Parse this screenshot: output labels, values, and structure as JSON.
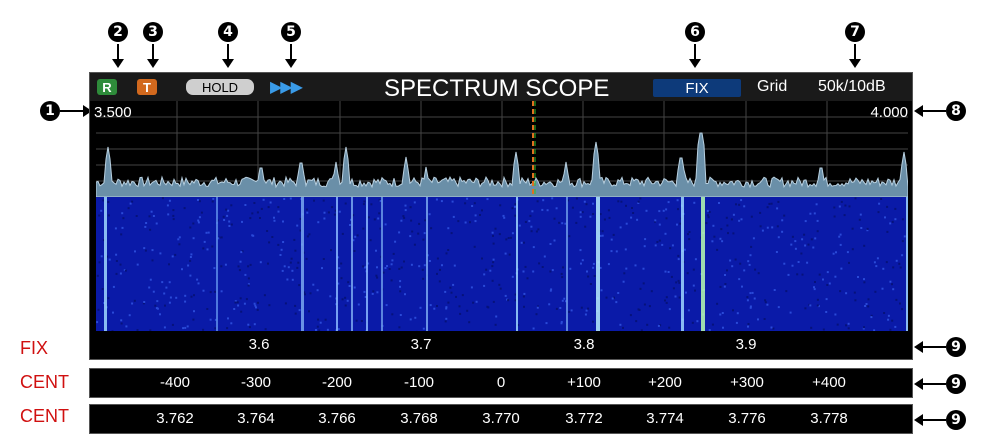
{
  "callouts": [
    "1",
    "2",
    "3",
    "4",
    "5",
    "6",
    "7",
    "8",
    "9"
  ],
  "screen": {
    "badge_r": "R",
    "badge_t": "T",
    "hold": "HOLD",
    "marker": "▶▶▶",
    "title": "SPECTRUM SCOPE",
    "mode": "FIX",
    "grid": "Grid",
    "span": "50k/10dB",
    "edge_low": "3.500",
    "edge_high": "4.000",
    "fix_scale": [
      "3.6",
      "3.7",
      "3.8",
      "3.9"
    ]
  },
  "scales": {
    "fix_label": "FIX",
    "cent_label_1": "CENT",
    "cent_label_2": "CENT",
    "cent_offsets": [
      "-400",
      "-300",
      "-200",
      "-100",
      "0",
      "+100",
      "+200",
      "+300",
      "+400"
    ],
    "cent_freqs": [
      "3.762",
      "3.764",
      "3.766",
      "3.768",
      "3.770",
      "3.772",
      "3.774",
      "3.776",
      "3.778"
    ]
  },
  "colors": {
    "badge_r": "#2e8b3a",
    "badge_t": "#d2691e",
    "waterfall_bg": "#0a1aa8",
    "signal": "#9fd8ff",
    "marker": "#e07020"
  }
}
